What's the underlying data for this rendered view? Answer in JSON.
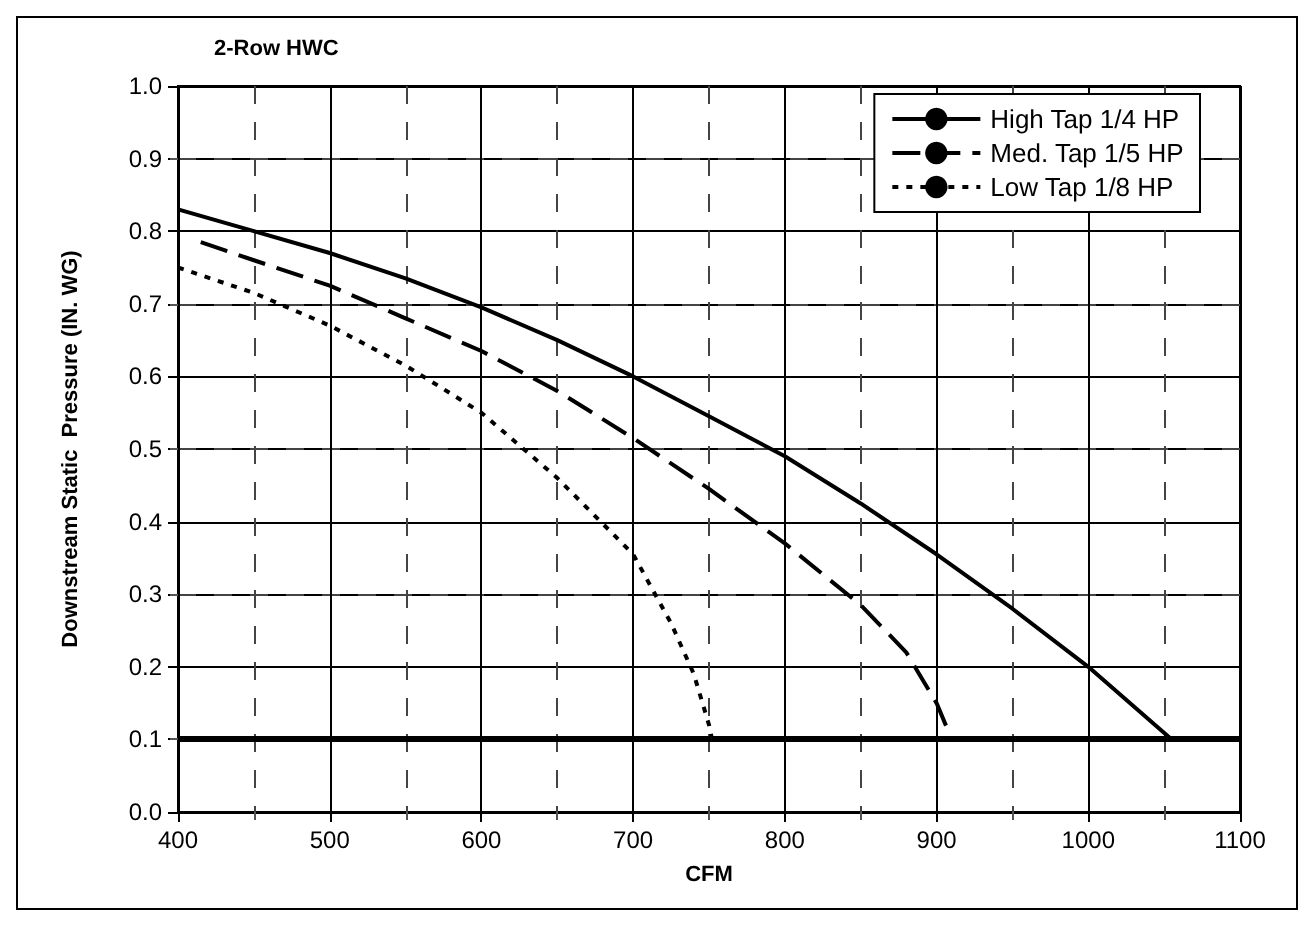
{
  "chart_data": {
    "type": "line",
    "xlabel": "CFM",
    "ylabel": "Downstream Static  Pressure (IN. WG)",
    "annotations": [
      "2-Row HWC"
    ],
    "xlim": [
      400,
      1100
    ],
    "xticks": [
      400,
      500,
      600,
      700,
      800,
      900,
      1000,
      1100
    ],
    "ylim": [
      0,
      1
    ],
    "yticks": [
      {
        "value": 0,
        "label": "0.0"
      },
      0.1,
      0.2,
      0.3,
      0.4,
      0.5,
      0.6,
      0.7,
      0.8,
      0.9,
      {
        "value": 1,
        "label": "1.0"
      }
    ],
    "grid": true,
    "legend": "top right",
    "marker": "none",
    "ref_lines": [
      {
        "axis": "y",
        "value": 0.1,
        "label": null,
        "color": "#000000"
      }
    ],
    "series": [
      {
        "name": "High Tap 1/4 HP",
        "color": "#000000",
        "line_style": "solid",
        "x": [
          400,
          450,
          500,
          550,
          600,
          650,
          700,
          750,
          800,
          850,
          900,
          950,
          1000,
          1055
        ],
        "values": [
          0.83,
          0.8,
          0.77,
          0.735,
          0.695,
          0.65,
          0.6,
          0.545,
          0.49,
          0.425,
          0.355,
          0.28,
          0.2,
          0.1
        ]
      },
      {
        "name": "Med. Tap 1/5 HP",
        "color": "#000000",
        "line_style": "dashed",
        "x": [
          415,
          450,
          500,
          550,
          600,
          650,
          700,
          750,
          800,
          850,
          880,
          900,
          910
        ],
        "values": [
          0.785,
          0.76,
          0.725,
          0.68,
          0.635,
          0.58,
          0.515,
          0.445,
          0.37,
          0.285,
          0.22,
          0.15,
          0.1
        ]
      },
      {
        "name": "Low Tap 1/8 HP",
        "color": "#000000",
        "line_style": "dotted",
        "x": [
          400,
          450,
          500,
          550,
          600,
          650,
          700,
          725,
          740,
          750,
          752
        ],
        "values": [
          0.75,
          0.715,
          0.67,
          0.615,
          0.55,
          0.46,
          0.355,
          0.26,
          0.19,
          0.12,
          0.1
        ]
      }
    ]
  }
}
